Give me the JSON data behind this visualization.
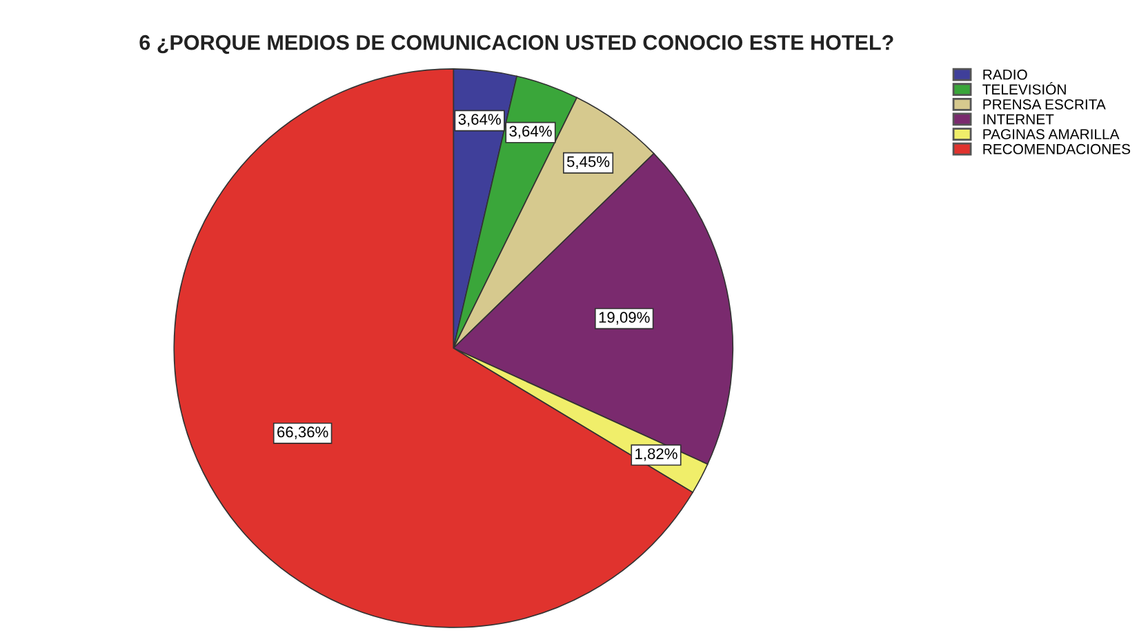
{
  "chart_data": {
    "type": "pie",
    "title": "6 ¿PORQUE MEDIOS DE COMUNICACION USTED CONOCIO ESTE HOTEL?",
    "categories": [
      "RADIO",
      "TELEVISIÓN",
      "PRENSA ESCRITA",
      "INTERNET",
      "PAGINAS AMARILLA",
      "RECOMENDACIONES"
    ],
    "values": [
      3.64,
      3.64,
      5.45,
      19.09,
      1.82,
      66.36
    ],
    "colors": [
      "#3f3f9a",
      "#3aa63a",
      "#d6c98e",
      "#7a2a6e",
      "#f0ee6a",
      "#e0332e"
    ],
    "value_labels": [
      "3,64%",
      "3,64%",
      "5,45%",
      "19,09%",
      "1,82%",
      "66,36%"
    ],
    "legend": "top right"
  }
}
